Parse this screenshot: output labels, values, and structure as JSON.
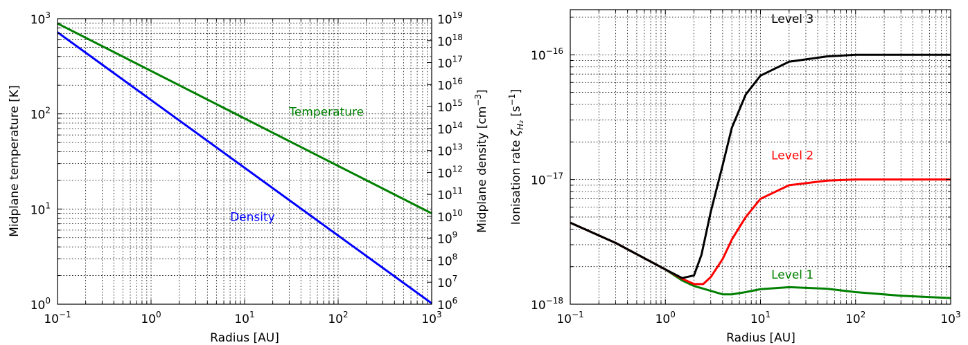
{
  "chart_data": [
    {
      "type": "line",
      "xlabel": "Radius [AU]",
      "ylabel": "Midplane temperature [K]",
      "ylabel_right": "Midplane density [cm$^{-3}$]",
      "ylabel_right_text": "Midplane density [cm",
      "ylabel_right_exp": "−3",
      "ylabel_right_close": "]",
      "x_scale": "log",
      "y_scale": "log",
      "y2_scale": "log",
      "xlim": [
        0.1,
        1000
      ],
      "ylim": [
        1,
        1000
      ],
      "y2lim": [
        1000000,
        10000000000000000000
      ],
      "grid": true,
      "x_ticks": [
        {
          "base": "10",
          "exp": "−1"
        },
        {
          "base": "10",
          "exp": "0"
        },
        {
          "base": "10",
          "exp": "1"
        },
        {
          "base": "10",
          "exp": "2"
        },
        {
          "base": "10",
          "exp": "3"
        }
      ],
      "y_ticks": [
        {
          "base": "10",
          "exp": "0"
        },
        {
          "base": "10",
          "exp": "1"
        },
        {
          "base": "10",
          "exp": "2"
        },
        {
          "base": "10",
          "exp": "3"
        }
      ],
      "y2_ticks": [
        {
          "base": "10",
          "exp": "6"
        },
        {
          "base": "10",
          "exp": "7"
        },
        {
          "base": "10",
          "exp": "8"
        },
        {
          "base": "10",
          "exp": "9"
        },
        {
          "base": "10",
          "exp": "10"
        },
        {
          "base": "10",
          "exp": "11"
        },
        {
          "base": "10",
          "exp": "12"
        },
        {
          "base": "10",
          "exp": "13"
        },
        {
          "base": "10",
          "exp": "14"
        },
        {
          "base": "10",
          "exp": "15"
        },
        {
          "base": "10",
          "exp": "16"
        },
        {
          "base": "10",
          "exp": "17"
        },
        {
          "base": "10",
          "exp": "18"
        },
        {
          "base": "10",
          "exp": "19"
        }
      ],
      "series": [
        {
          "name": "Temperature",
          "color": "#008000",
          "axis": "left",
          "x": [
            0.1,
            1000
          ],
          "y": [
            890,
            9
          ]
        },
        {
          "name": "Density",
          "color": "#0000ff",
          "axis": "right",
          "x": [
            0.1,
            1000
          ],
          "y": [
            2.4e+18,
            1100000.0
          ]
        }
      ],
      "annotations": [
        {
          "text": "Temperature",
          "color": "#008000",
          "x": 30,
          "y": 95
        },
        {
          "text": "Density",
          "color": "#0000ff",
          "x": 7,
          "y": 7.5
        }
      ]
    },
    {
      "type": "line",
      "xlabel": "Radius [AU]",
      "ylabel_text": "Ionisation rate ",
      "ylabel_symbol": "ζ",
      "ylabel_sub": "H₂",
      "ylabel_unit_open": " [s",
      "ylabel_unit_exp": "−1",
      "ylabel_unit_close": "]",
      "x_scale": "log",
      "y_scale": "log",
      "xlim": [
        0.1,
        1000
      ],
      "ylim": [
        1e-18,
        2.3e-16
      ],
      "grid": true,
      "x_ticks": [
        {
          "base": "10",
          "exp": "−1"
        },
        {
          "base": "10",
          "exp": "0"
        },
        {
          "base": "10",
          "exp": "1"
        },
        {
          "base": "10",
          "exp": "2"
        },
        {
          "base": "10",
          "exp": "3"
        }
      ],
      "y_ticks": [
        {
          "base": "10",
          "exp": "−18"
        },
        {
          "base": "10",
          "exp": "−17"
        },
        {
          "base": "10",
          "exp": "−16"
        }
      ],
      "series": [
        {
          "name": "Level 1",
          "color": "#008000",
          "x": [
            0.1,
            0.3,
            1,
            1.5,
            2,
            3,
            4,
            5,
            7,
            10,
            20,
            50,
            100,
            300,
            1000
          ],
          "y": [
            4.5e-18,
            3.1e-18,
            1.9e-18,
            1.55e-18,
            1.4e-18,
            1.28e-18,
            1.2e-18,
            1.2e-18,
            1.25e-18,
            1.32e-18,
            1.37e-18,
            1.33e-18,
            1.25e-18,
            1.17e-18,
            1.12e-18
          ]
        },
        {
          "name": "Level 2",
          "color": "#ff0000",
          "x": [
            0.1,
            0.3,
            1,
            1.5,
            2,
            2.5,
            3,
            4,
            5,
            7,
            10,
            20,
            50,
            100,
            300,
            1000
          ],
          "y": [
            4.5e-18,
            3.1e-18,
            1.9e-18,
            1.6e-18,
            1.45e-18,
            1.45e-18,
            1.65e-18,
            2.3e-18,
            3.3e-18,
            5e-18,
            7e-18,
            9e-18,
            9.8e-18,
            1e-17,
            1e-17,
            1e-17
          ]
        },
        {
          "name": "Level 3",
          "color": "#000000",
          "x": [
            0.1,
            0.3,
            1,
            1.5,
            2,
            2.4,
            3,
            4,
            5,
            7,
            10,
            20,
            50,
            100,
            300,
            1000
          ],
          "y": [
            4.5e-18,
            3.1e-18,
            1.9e-18,
            1.62e-18,
            1.7e-18,
            2.5e-18,
            5.5e-18,
            1.3e-17,
            2.6e-17,
            4.8e-17,
            6.8e-17,
            8.8e-17,
            9.7e-17,
            1e-16,
            1e-16,
            1e-16
          ]
        }
      ],
      "annotations": [
        {
          "text": "Level 3",
          "color": "#000000",
          "x": 13,
          "y": 1.8e-16
        },
        {
          "text": "Level 2",
          "color": "#ff0000",
          "x": 13,
          "y": 1.45e-17
        },
        {
          "text": "Level 1",
          "color": "#008000",
          "x": 13,
          "y": 1.6e-18
        }
      ]
    }
  ]
}
